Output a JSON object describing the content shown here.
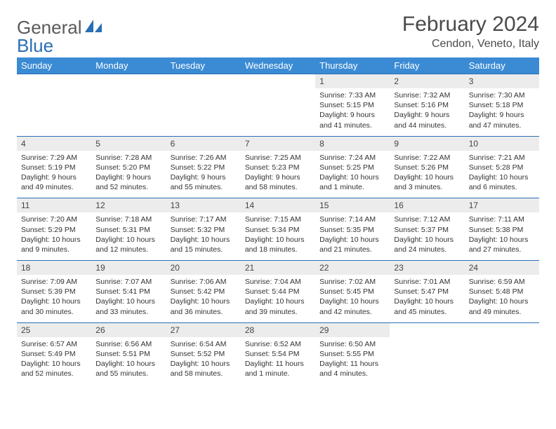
{
  "logo": {
    "part1": "General",
    "part2": "Blue"
  },
  "title": "February 2024",
  "location": "Cendon, Veneto, Italy",
  "headers": [
    "Sunday",
    "Monday",
    "Tuesday",
    "Wednesday",
    "Thursday",
    "Friday",
    "Saturday"
  ],
  "colors": {
    "header_bg": "#3b8bd4",
    "header_text": "#ffffff",
    "rule": "#2a6fb5",
    "daynum_bg": "#ececec",
    "logo_gray": "#5a5a5a",
    "logo_blue": "#2a6fb5"
  },
  "weeks": [
    [
      null,
      null,
      null,
      null,
      {
        "n": "1",
        "sr": "Sunrise: 7:33 AM",
        "ss": "Sunset: 5:15 PM",
        "d1": "Daylight: 9 hours",
        "d2": "and 41 minutes."
      },
      {
        "n": "2",
        "sr": "Sunrise: 7:32 AM",
        "ss": "Sunset: 5:16 PM",
        "d1": "Daylight: 9 hours",
        "d2": "and 44 minutes."
      },
      {
        "n": "3",
        "sr": "Sunrise: 7:30 AM",
        "ss": "Sunset: 5:18 PM",
        "d1": "Daylight: 9 hours",
        "d2": "and 47 minutes."
      }
    ],
    [
      {
        "n": "4",
        "sr": "Sunrise: 7:29 AM",
        "ss": "Sunset: 5:19 PM",
        "d1": "Daylight: 9 hours",
        "d2": "and 49 minutes."
      },
      {
        "n": "5",
        "sr": "Sunrise: 7:28 AM",
        "ss": "Sunset: 5:20 PM",
        "d1": "Daylight: 9 hours",
        "d2": "and 52 minutes."
      },
      {
        "n": "6",
        "sr": "Sunrise: 7:26 AM",
        "ss": "Sunset: 5:22 PM",
        "d1": "Daylight: 9 hours",
        "d2": "and 55 minutes."
      },
      {
        "n": "7",
        "sr": "Sunrise: 7:25 AM",
        "ss": "Sunset: 5:23 PM",
        "d1": "Daylight: 9 hours",
        "d2": "and 58 minutes."
      },
      {
        "n": "8",
        "sr": "Sunrise: 7:24 AM",
        "ss": "Sunset: 5:25 PM",
        "d1": "Daylight: 10 hours",
        "d2": "and 1 minute."
      },
      {
        "n": "9",
        "sr": "Sunrise: 7:22 AM",
        "ss": "Sunset: 5:26 PM",
        "d1": "Daylight: 10 hours",
        "d2": "and 3 minutes."
      },
      {
        "n": "10",
        "sr": "Sunrise: 7:21 AM",
        "ss": "Sunset: 5:28 PM",
        "d1": "Daylight: 10 hours",
        "d2": "and 6 minutes."
      }
    ],
    [
      {
        "n": "11",
        "sr": "Sunrise: 7:20 AM",
        "ss": "Sunset: 5:29 PM",
        "d1": "Daylight: 10 hours",
        "d2": "and 9 minutes."
      },
      {
        "n": "12",
        "sr": "Sunrise: 7:18 AM",
        "ss": "Sunset: 5:31 PM",
        "d1": "Daylight: 10 hours",
        "d2": "and 12 minutes."
      },
      {
        "n": "13",
        "sr": "Sunrise: 7:17 AM",
        "ss": "Sunset: 5:32 PM",
        "d1": "Daylight: 10 hours",
        "d2": "and 15 minutes."
      },
      {
        "n": "14",
        "sr": "Sunrise: 7:15 AM",
        "ss": "Sunset: 5:34 PM",
        "d1": "Daylight: 10 hours",
        "d2": "and 18 minutes."
      },
      {
        "n": "15",
        "sr": "Sunrise: 7:14 AM",
        "ss": "Sunset: 5:35 PM",
        "d1": "Daylight: 10 hours",
        "d2": "and 21 minutes."
      },
      {
        "n": "16",
        "sr": "Sunrise: 7:12 AM",
        "ss": "Sunset: 5:37 PM",
        "d1": "Daylight: 10 hours",
        "d2": "and 24 minutes."
      },
      {
        "n": "17",
        "sr": "Sunrise: 7:11 AM",
        "ss": "Sunset: 5:38 PM",
        "d1": "Daylight: 10 hours",
        "d2": "and 27 minutes."
      }
    ],
    [
      {
        "n": "18",
        "sr": "Sunrise: 7:09 AM",
        "ss": "Sunset: 5:39 PM",
        "d1": "Daylight: 10 hours",
        "d2": "and 30 minutes."
      },
      {
        "n": "19",
        "sr": "Sunrise: 7:07 AM",
        "ss": "Sunset: 5:41 PM",
        "d1": "Daylight: 10 hours",
        "d2": "and 33 minutes."
      },
      {
        "n": "20",
        "sr": "Sunrise: 7:06 AM",
        "ss": "Sunset: 5:42 PM",
        "d1": "Daylight: 10 hours",
        "d2": "and 36 minutes."
      },
      {
        "n": "21",
        "sr": "Sunrise: 7:04 AM",
        "ss": "Sunset: 5:44 PM",
        "d1": "Daylight: 10 hours",
        "d2": "and 39 minutes."
      },
      {
        "n": "22",
        "sr": "Sunrise: 7:02 AM",
        "ss": "Sunset: 5:45 PM",
        "d1": "Daylight: 10 hours",
        "d2": "and 42 minutes."
      },
      {
        "n": "23",
        "sr": "Sunrise: 7:01 AM",
        "ss": "Sunset: 5:47 PM",
        "d1": "Daylight: 10 hours",
        "d2": "and 45 minutes."
      },
      {
        "n": "24",
        "sr": "Sunrise: 6:59 AM",
        "ss": "Sunset: 5:48 PM",
        "d1": "Daylight: 10 hours",
        "d2": "and 49 minutes."
      }
    ],
    [
      {
        "n": "25",
        "sr": "Sunrise: 6:57 AM",
        "ss": "Sunset: 5:49 PM",
        "d1": "Daylight: 10 hours",
        "d2": "and 52 minutes."
      },
      {
        "n": "26",
        "sr": "Sunrise: 6:56 AM",
        "ss": "Sunset: 5:51 PM",
        "d1": "Daylight: 10 hours",
        "d2": "and 55 minutes."
      },
      {
        "n": "27",
        "sr": "Sunrise: 6:54 AM",
        "ss": "Sunset: 5:52 PM",
        "d1": "Daylight: 10 hours",
        "d2": "and 58 minutes."
      },
      {
        "n": "28",
        "sr": "Sunrise: 6:52 AM",
        "ss": "Sunset: 5:54 PM",
        "d1": "Daylight: 11 hours",
        "d2": "and 1 minute."
      },
      {
        "n": "29",
        "sr": "Sunrise: 6:50 AM",
        "ss": "Sunset: 5:55 PM",
        "d1": "Daylight: 11 hours",
        "d2": "and 4 minutes."
      },
      null,
      null
    ]
  ]
}
